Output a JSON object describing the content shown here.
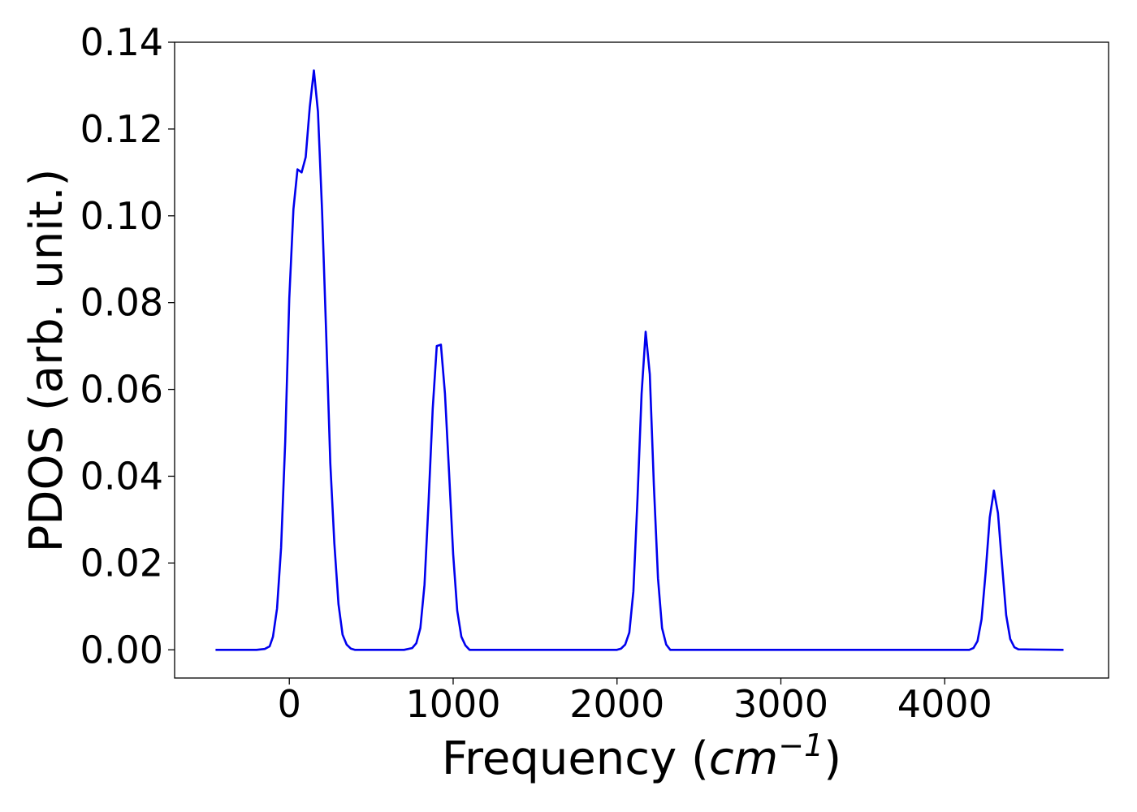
{
  "chart_data": {
    "type": "line",
    "xlabel": {
      "prefix": "Frequency (",
      "italic": "cm",
      "sup": "−1",
      "suffix": ")"
    },
    "ylabel": "PDOS (arb. unit.)",
    "xlim": [
      -700,
      5000
    ],
    "ylim": [
      -0.0065,
      0.14
    ],
    "xticks": [
      0,
      1000,
      2000,
      3000,
      4000
    ],
    "xtick_labels": [
      "0",
      "1000",
      "2000",
      "3000",
      "4000"
    ],
    "yticks": [
      0.0,
      0.02,
      0.04,
      0.06,
      0.08,
      0.1,
      0.12,
      0.14
    ],
    "ytick_labels": [
      "0.00",
      "0.02",
      "0.04",
      "0.06",
      "0.08",
      "0.10",
      "0.12",
      "0.14"
    ],
    "grid": false,
    "colors": {
      "line": "#0000ee"
    },
    "series": [
      {
        "x": [
          -450,
          -200,
          -150,
          -120,
          -100,
          -75,
          -50,
          -25,
          0,
          25,
          50,
          75,
          100,
          125,
          150,
          175,
          200,
          225,
          250,
          275,
          300,
          325,
          350,
          375,
          400,
          450,
          700,
          750,
          775,
          800,
          825,
          850,
          875,
          900,
          925,
          950,
          975,
          1000,
          1025,
          1050,
          1075,
          1100,
          2000,
          2025,
          2050,
          2075,
          2100,
          2125,
          2150,
          2175,
          2200,
          2225,
          2250,
          2275,
          2300,
          2325,
          4150,
          4175,
          4200,
          4225,
          4250,
          4275,
          4300,
          4325,
          4350,
          4375,
          4400,
          4425,
          4450,
          4725
        ],
        "y": [
          0.0,
          0.0,
          0.0002,
          0.0008,
          0.003,
          0.0095,
          0.0235,
          0.048,
          0.081,
          0.1015,
          0.1107,
          0.11,
          0.1135,
          0.125,
          0.1335,
          0.124,
          0.101,
          0.073,
          0.043,
          0.0245,
          0.0105,
          0.0035,
          0.0012,
          0.0003,
          0.0,
          0.0,
          0.0,
          0.0004,
          0.0015,
          0.005,
          0.015,
          0.034,
          0.0555,
          0.07,
          0.0703,
          0.059,
          0.041,
          0.022,
          0.009,
          0.003,
          0.001,
          0.0,
          0.0,
          0.0003,
          0.0012,
          0.004,
          0.0135,
          0.035,
          0.059,
          0.0733,
          0.0635,
          0.038,
          0.0165,
          0.005,
          0.0012,
          0.0,
          0.0,
          0.0004,
          0.002,
          0.007,
          0.018,
          0.0305,
          0.0367,
          0.0315,
          0.0195,
          0.008,
          0.0025,
          0.0006,
          0.0001,
          0.0
        ]
      }
    ]
  }
}
